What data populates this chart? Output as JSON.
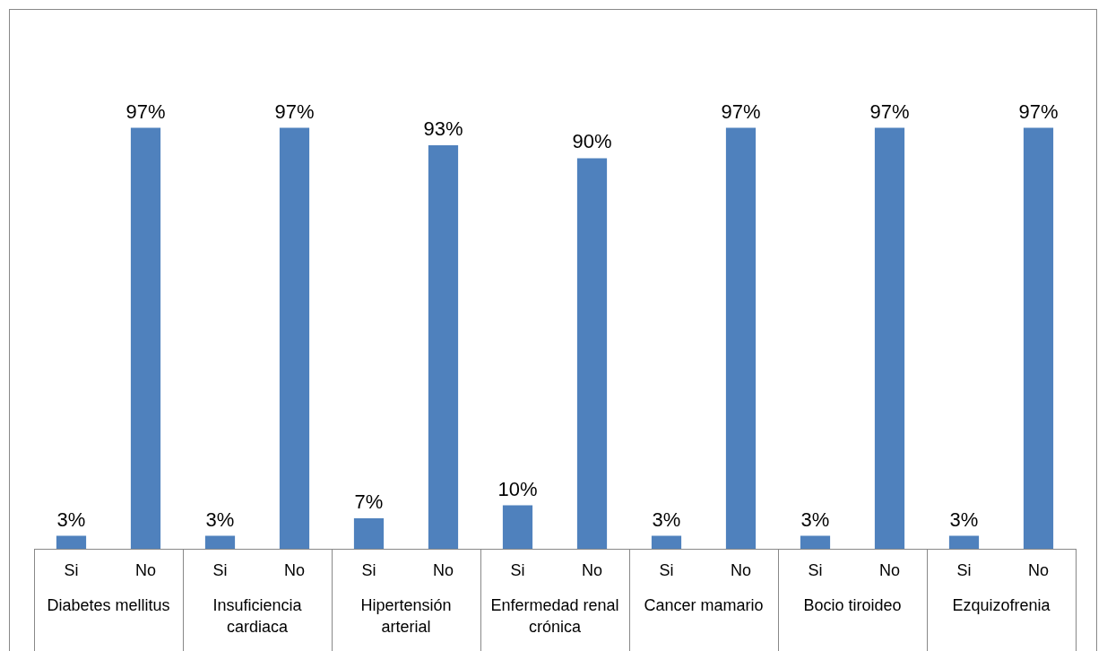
{
  "chart_data": {
    "type": "bar",
    "categories": [
      "Si",
      "No",
      "Si",
      "No",
      "Si",
      "No",
      "Si",
      "No",
      "Si",
      "No",
      "Si",
      "No",
      "Si",
      "No"
    ],
    "series": [
      {
        "color": "#4f81bd",
        "values": [
          3,
          97,
          3,
          97,
          7,
          93,
          10,
          90,
          3,
          97,
          3,
          97,
          3,
          97
        ],
        "value_labels": [
          "3%",
          "97%",
          "3%",
          "97%",
          "7%",
          "93%",
          "10%",
          "90%",
          "3%",
          "97%",
          "3%",
          "97%",
          "3%",
          "97%"
        ]
      }
    ],
    "annotations": [
      "Diabetes mellitus",
      "Insuficiencia cardiaca",
      "Hipertensión arterial",
      "Enfermedad renal crónica",
      "Cancer mamario",
      "Bocio tiroideo",
      "Ezquizofrenia"
    ],
    "grid": false,
    "legend": false,
    "tick_labels": "x"
  }
}
